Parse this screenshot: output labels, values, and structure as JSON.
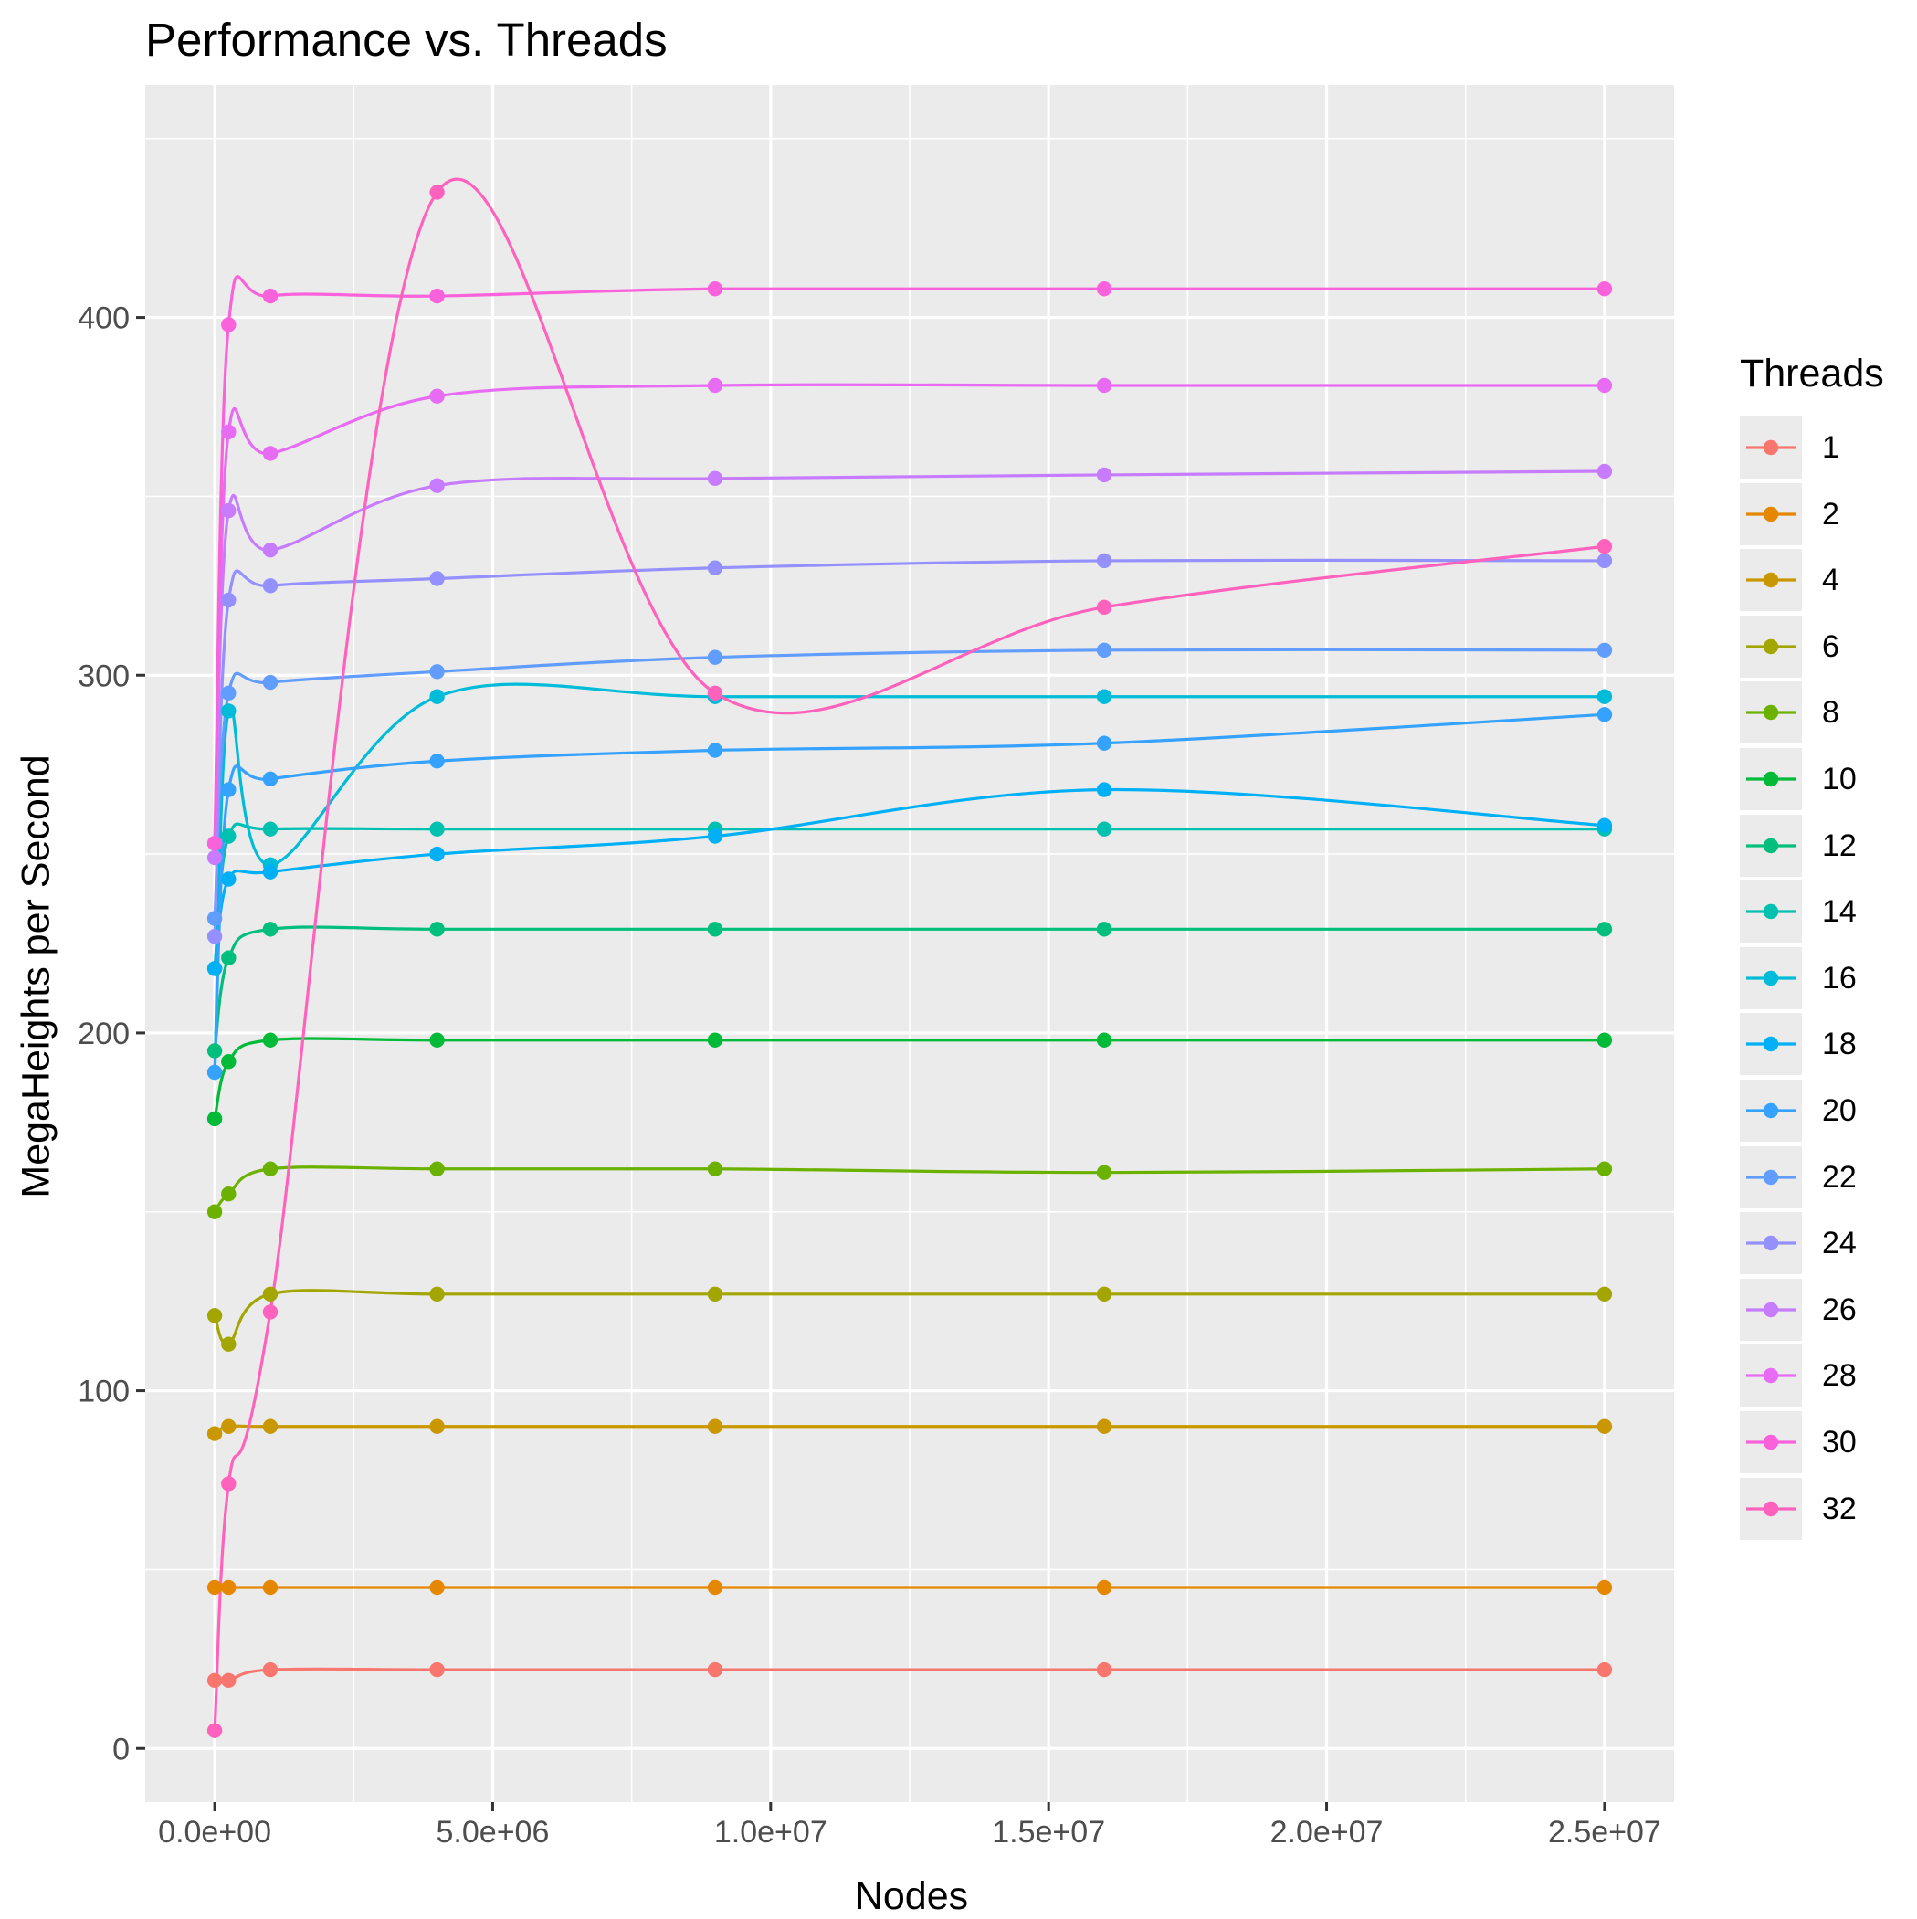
{
  "chart_data": {
    "type": "line",
    "title": "Performance vs. Threads",
    "xlabel": "Nodes",
    "ylabel": "MegaHeights per Second",
    "xlim": [
      -1250000,
      26250000
    ],
    "ylim": [
      -15,
      465
    ],
    "x_ticks": [
      0,
      5000000,
      10000000,
      15000000,
      20000000,
      25000000
    ],
    "x_tick_labels": [
      "0.0e+00",
      "5.0e+06",
      "1.0e+07",
      "1.5e+07",
      "2.0e+07",
      "2.5e+07"
    ],
    "y_ticks": [
      0,
      100,
      200,
      300,
      400
    ],
    "y_tick_labels": [
      "0",
      "100",
      "200",
      "300",
      "400"
    ],
    "grid": true,
    "legend": {
      "title": "Threads",
      "position": "right"
    },
    "x": [
      1,
      250000,
      1000000,
      4000000,
      9000000,
      16000000,
      25000000
    ],
    "series": [
      {
        "name": "1",
        "color": "#F8766D",
        "values": [
          19,
          19,
          22,
          22,
          22,
          22,
          22
        ]
      },
      {
        "name": "2",
        "color": "#E58700",
        "values": [
          45,
          45,
          45,
          45,
          45,
          45,
          45
        ]
      },
      {
        "name": "4",
        "color": "#C99800",
        "values": [
          88,
          90,
          90,
          90,
          90,
          90,
          90
        ]
      },
      {
        "name": "6",
        "color": "#A3A500",
        "values": [
          121,
          113,
          127,
          127,
          127,
          127,
          127
        ]
      },
      {
        "name": "8",
        "color": "#6BB100",
        "values": [
          150,
          155,
          162,
          162,
          162,
          161,
          162
        ]
      },
      {
        "name": "10",
        "color": "#00BA38",
        "values": [
          176,
          192,
          198,
          198,
          198,
          198,
          198
        ]
      },
      {
        "name": "12",
        "color": "#00BF7D",
        "values": [
          195,
          221,
          229,
          229,
          229,
          229,
          229
        ]
      },
      {
        "name": "14",
        "color": "#00C0AF",
        "values": [
          218,
          255,
          257,
          257,
          257,
          257,
          257
        ]
      },
      {
        "name": "16",
        "color": "#00BCD8",
        "values": [
          189,
          290,
          247,
          294,
          294,
          294,
          294
        ]
      },
      {
        "name": "18",
        "color": "#00B0F6",
        "values": [
          218,
          243,
          245,
          250,
          255,
          268,
          258
        ]
      },
      {
        "name": "20",
        "color": "#35A2FF",
        "values": [
          189,
          268,
          271,
          276,
          279,
          281,
          289
        ]
      },
      {
        "name": "22",
        "color": "#619CFF",
        "values": [
          232,
          295,
          298,
          301,
          305,
          307,
          307
        ]
      },
      {
        "name": "24",
        "color": "#9590FF",
        "values": [
          227,
          321,
          325,
          327,
          330,
          332,
          332
        ]
      },
      {
        "name": "26",
        "color": "#C77CFF",
        "values": [
          249,
          346,
          335,
          353,
          355,
          356,
          357
        ]
      },
      {
        "name": "28",
        "color": "#E76BF3",
        "values": [
          253,
          368,
          362,
          378,
          381,
          381,
          381
        ]
      },
      {
        "name": "30",
        "color": "#FA62DB",
        "values": [
          253,
          398,
          406,
          406,
          408,
          408,
          408
        ]
      },
      {
        "name": "32",
        "color": "#FF62BC",
        "values": [
          5,
          74,
          122,
          435,
          295,
          319,
          336
        ]
      }
    ]
  }
}
